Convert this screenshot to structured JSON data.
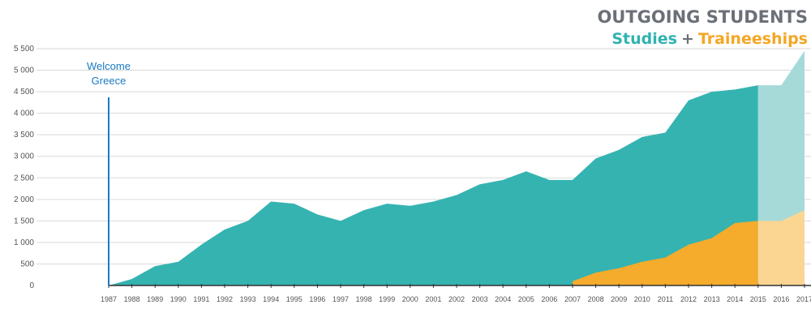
{
  "chart_data": {
    "type": "area",
    "title": "OUTGOING STUDENTS",
    "subtitle_parts": {
      "studies": "Studies",
      "plus": "+",
      "traineeships": "Traineeships"
    },
    "x": [
      1987,
      1988,
      1989,
      1990,
      1991,
      1992,
      1993,
      1994,
      1995,
      1996,
      1997,
      1998,
      1999,
      2000,
      2001,
      2002,
      2003,
      2004,
      2005,
      2006,
      2007,
      2008,
      2009,
      2010,
      2011,
      2012,
      2013,
      2014,
      2015,
      2016,
      2017
    ],
    "xtick_labels": [
      "1987",
      "1988",
      "1989",
      "1990",
      "1991",
      "1992",
      "1993",
      "1994",
      "1995",
      "1996",
      "1997",
      "1998",
      "1999",
      "2000",
      "2001",
      "2002",
      "2003",
      "2004",
      "2005",
      "2006",
      "2007",
      "2008",
      "2009",
      "2010",
      "2011",
      "2012",
      "2013",
      "2014",
      "2015",
      "2016",
      "2017"
    ],
    "yticks": [
      0,
      500,
      1000,
      1500,
      2000,
      2500,
      3000,
      3500,
      4000,
      4500,
      5000,
      5500
    ],
    "ytick_labels": [
      "0",
      "500",
      "1 000",
      "1 500",
      "2 000",
      "2 500",
      "3 000",
      "3 500",
      "4 000",
      "4 500",
      "5 000",
      "5 500"
    ],
    "ylim": [
      0,
      5600
    ],
    "series": [
      {
        "name": "Studies + Traineeships",
        "color": "#35b3b1",
        "projected_color": "#a6dad9",
        "values": [
          0,
          150,
          450,
          550,
          950,
          1300,
          1500,
          1950,
          1900,
          1650,
          1500,
          1750,
          1900,
          1850,
          1950,
          2100,
          2350,
          2450,
          2650,
          2450,
          2450,
          2950,
          3150,
          3450,
          3550,
          4300,
          4500,
          4550,
          4650,
          4650,
          5450
        ]
      },
      {
        "name": "Traineeships",
        "color": "#f5ab2c",
        "projected_color": "#fbd592",
        "values": [
          null,
          null,
          null,
          null,
          null,
          null,
          null,
          null,
          null,
          null,
          null,
          null,
          null,
          null,
          null,
          null,
          null,
          null,
          null,
          null,
          100,
          300,
          400,
          550,
          650,
          950,
          1100,
          1450,
          1500,
          1500,
          1750
        ]
      }
    ],
    "projected_from": 2015,
    "annotation": {
      "lines": [
        "Welcome",
        "Greece"
      ],
      "x": 1987,
      "color": "#1a7bc4"
    }
  }
}
